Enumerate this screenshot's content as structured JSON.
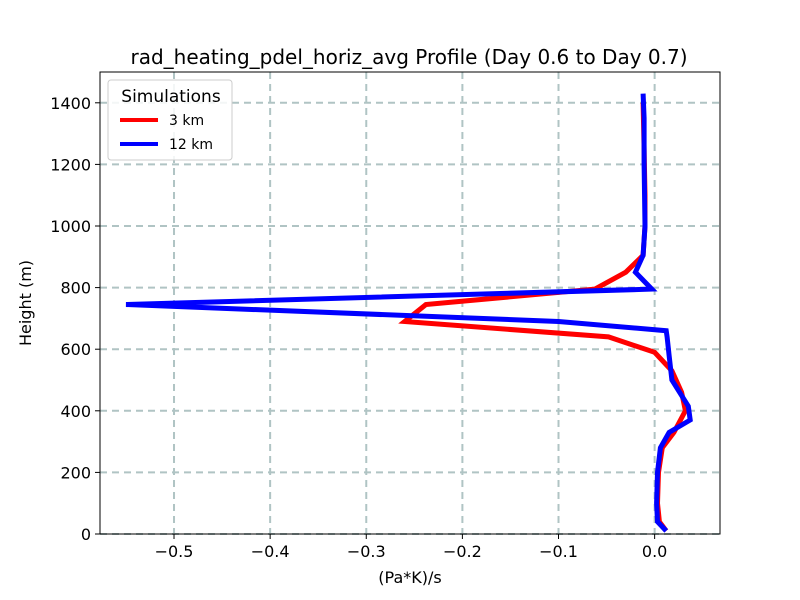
{
  "chart_data": {
    "type": "line",
    "title": "rad_heating_pdel_horiz_avg Profile (Day 0.6 to Day 0.7)",
    "xlabel": "(Pa*K)/s",
    "ylabel": "Height (m)",
    "xlim": [
      -0.577,
      0.068
    ],
    "ylim": [
      0,
      1500
    ],
    "xticks": [
      -0.5,
      -0.4,
      -0.3,
      -0.2,
      -0.1,
      0.0
    ],
    "xtick_labels": [
      "−0.5",
      "−0.4",
      "−0.3",
      "−0.2",
      "−0.1",
      "0.0"
    ],
    "yticks": [
      0,
      200,
      400,
      600,
      800,
      1000,
      1200,
      1400
    ],
    "ytick_labels": [
      "0",
      "200",
      "400",
      "600",
      "800",
      "1000",
      "1200",
      "1400"
    ],
    "grid": true,
    "legend": {
      "title": "Simulations",
      "placement": "top-left"
    },
    "series": [
      {
        "name": "3 km",
        "color": "#ff0000",
        "x": [
          0.012,
          0.005,
          0.003,
          0.004,
          0.008,
          0.02,
          0.032,
          0.028,
          0.018,
          0.0,
          -0.048,
          -0.26,
          -0.238,
          -0.062,
          -0.03,
          -0.012,
          -0.01,
          -0.01,
          -0.011,
          -0.012
        ],
        "y": [
          10,
          40,
          100,
          200,
          280,
          330,
          400,
          460,
          530,
          590,
          640,
          690,
          745,
          795,
          850,
          905,
          1000,
          1100,
          1250,
          1400
        ]
      },
      {
        "name": "12 km",
        "color": "#0000ff",
        "x": [
          0.012,
          0.003,
          0.002,
          0.003,
          0.006,
          0.015,
          0.037,
          0.035,
          0.018,
          0.015,
          0.013,
          0.012,
          -0.1,
          -0.55,
          -0.003,
          -0.02,
          -0.012,
          -0.01,
          -0.011,
          -0.011,
          -0.012
        ],
        "y": [
          10,
          40,
          100,
          200,
          280,
          330,
          370,
          415,
          500,
          580,
          640,
          660,
          690,
          745,
          795,
          850,
          905,
          1000,
          1200,
          1350,
          1430
        ]
      }
    ]
  }
}
